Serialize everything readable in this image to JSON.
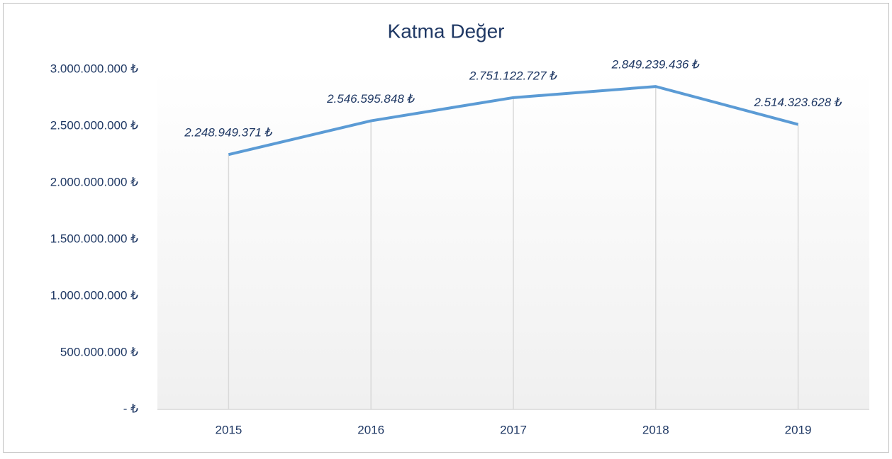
{
  "chart_data": {
    "type": "line",
    "title": "Katma Değer",
    "categories": [
      "2015",
      "2016",
      "2017",
      "2018",
      "2019"
    ],
    "series": [
      {
        "name": "Katma Değer",
        "color": "#5b9bd5",
        "values": [
          2248949371,
          2546595848,
          2751122727,
          2849239436,
          2514323628
        ],
        "value_labels": [
          "2.248.949.371 ₺",
          "2.546.595.848 ₺",
          "2.751.122.727 ₺",
          "2.849.239.436 ₺",
          "2.514.323.628 ₺"
        ]
      }
    ],
    "ylim": [
      0,
      3000000000
    ],
    "yticks": [
      {
        "value": 0,
        "label": "-  ₺"
      },
      {
        "value": 500000000,
        "label": "500.000.000 ₺"
      },
      {
        "value": 1000000000,
        "label": "1.000.000.000 ₺"
      },
      {
        "value": 1500000000,
        "label": "1.500.000.000 ₺"
      },
      {
        "value": 2000000000,
        "label": "2.000.000.000 ₺"
      },
      {
        "value": 2500000000,
        "label": "2.500.000.000 ₺"
      },
      {
        "value": 3000000000,
        "label": "3.000.000.000 ₺"
      }
    ],
    "drop_lines": true
  }
}
